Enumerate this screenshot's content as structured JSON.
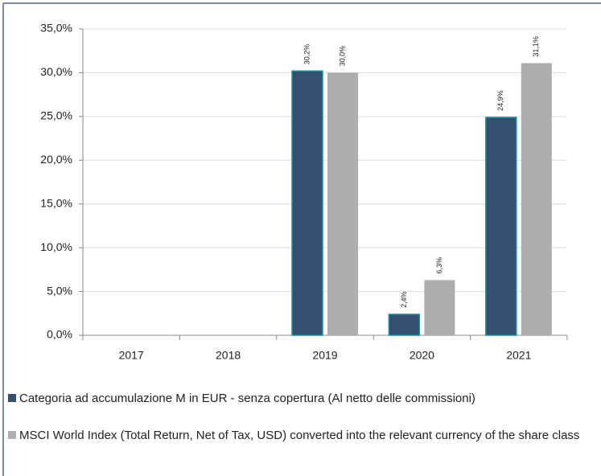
{
  "chart_data": {
    "type": "bar",
    "categories": [
      "2017",
      "2018",
      "2019",
      "2020",
      "2021"
    ],
    "series": [
      {
        "name": "Categoria ad accumulazione M in EUR - senza copertura (Al netto delle commissioni)",
        "color": "#374f6f",
        "values": [
          null,
          null,
          30.2,
          2.4,
          24.9
        ],
        "value_labels": [
          null,
          null,
          "30,2%",
          "2,4%",
          "24,9%"
        ]
      },
      {
        "name": "MSCI World Index (Total Return, Net of Tax, USD) converted into the relevant currency of the share class",
        "color": "#aeaeb0",
        "values": [
          null,
          null,
          30.0,
          6.3,
          31.1
        ],
        "value_labels": [
          null,
          null,
          "30,0%",
          "6,3%",
          "31,1%"
        ]
      }
    ],
    "ylim": [
      0,
      35
    ],
    "yticks": [
      {
        "value": 0,
        "label": "0,0%"
      },
      {
        "value": 5,
        "label": "5,0%"
      },
      {
        "value": 10,
        "label": "10,0%"
      },
      {
        "value": 15,
        "label": "15,0%"
      },
      {
        "value": 20,
        "label": "20,0%"
      },
      {
        "value": 25,
        "label": "25,0%"
      },
      {
        "value": 30,
        "label": "30,0%"
      },
      {
        "value": 35,
        "label": "35,0%"
      }
    ],
    "grid": true
  }
}
